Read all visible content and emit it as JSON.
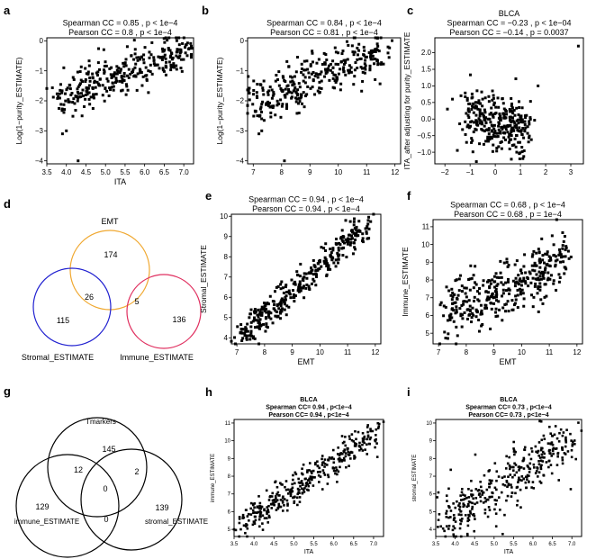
{
  "chart_data": [
    {
      "panel": "a",
      "type": "scatter",
      "stats": [
        "Spearman CC = 0.85 ,  p < 1e−4",
        "Pearson CC = 0.8 ,  p < 1e−4"
      ],
      "xlabel": "ITA",
      "ylabel": "Log(1−purity_ESTIMATE)",
      "xlim": [
        3.5,
        7.25
      ],
      "ylim": [
        -4.1,
        0.1
      ],
      "xticks": [
        "3.5",
        "4.0",
        "4.5",
        "5.0",
        "5.5",
        "6.0",
        "6.5",
        "7.0"
      ],
      "yticks": [
        "0",
        "−1",
        "−2",
        "−3",
        "−4"
      ],
      "trend": {
        "x0": 3.6,
        "y0": -1.95,
        "x1": 7.1,
        "y1": -0.25,
        "spread": 0.35,
        "n": 320,
        "seed": 11
      },
      "points": [
        [
          4.3,
          -4.0
        ],
        [
          4.0,
          -3.0
        ],
        [
          3.9,
          -3.1
        ]
      ]
    },
    {
      "panel": "b",
      "type": "scatter",
      "stats": [
        "Spearman CC = 0.84 ,  p < 1e−4",
        "Pearson CC = 0.81 ,  p < 1e−4"
      ],
      "xlabel": "",
      "ylabel": "Log(1−purity_ESTIMATE)",
      "xlim": [
        6.8,
        12.2
      ],
      "ylim": [
        -4.1,
        0.1
      ],
      "xticks": [
        "7",
        "8",
        "9",
        "10",
        "11",
        "12"
      ],
      "yticks": [
        "0",
        "−1",
        "−2",
        "−3",
        "−4"
      ],
      "trend": {
        "x0": 7.0,
        "y0": -2.1,
        "x1": 11.6,
        "y1": -0.3,
        "spread": 0.38,
        "n": 320,
        "seed": 22
      },
      "points": [
        [
          8.1,
          -4.0
        ],
        [
          7.3,
          -3.0
        ],
        [
          7.2,
          -3.1
        ]
      ]
    },
    {
      "panel": "c",
      "type": "scatter",
      "title": "BLCA",
      "stats": [
        "Spearman CC = −0.23 ,  p < 1e−04",
        "Pearson CC = −0.14 ,  p = 0.0037"
      ],
      "xlabel": "",
      "ylabel": "ITA_after adjusting for purity_ESTIMATE",
      "xlim": [
        -2.4,
        3.5
      ],
      "ylim": [
        -1.35,
        2.45
      ],
      "xticks": [
        "−2",
        "−1",
        "0",
        "1",
        "2",
        "3"
      ],
      "yticks": [
        "−1.0",
        "−0.5",
        "0.0",
        "0.5",
        "1.0",
        "1.5",
        "2.0"
      ],
      "trend": {
        "x0": -1.2,
        "y0": 0.1,
        "x1": 1.3,
        "y1": -0.3,
        "spread": 0.42,
        "n": 300,
        "seed": 33
      },
      "points": [
        [
          3.3,
          2.2
        ],
        [
          1.7,
          1.0
        ],
        [
          -1.7,
          0.6
        ],
        [
          -1.9,
          0.3
        ]
      ]
    },
    {
      "panel": "d",
      "type": "venn",
      "sets": [
        "EMT",
        "Stromal_ESTIMATE",
        "Immune_ESTIMATE"
      ],
      "regions": {
        "emt_only": "174",
        "stromal_only": "115",
        "immune_only": "136",
        "emt_stromal": "26",
        "emt_immune": "5"
      },
      "colors": {
        "emt": "#f0a830",
        "stromal": "#2020d0",
        "immune": "#e03060"
      }
    },
    {
      "panel": "e",
      "type": "scatter",
      "stats": [
        "Spearman CC = 0.94 ,  p < 1e−4",
        "Pearson CC = 0.94 ,  p < 1e−4"
      ],
      "xlabel": "EMT",
      "ylabel": "Stromal_ESTIMATE",
      "xlim": [
        6.8,
        12.2
      ],
      "ylim": [
        3.7,
        10.1
      ],
      "xticks": [
        "7",
        "8",
        "9",
        "10",
        "11",
        "12"
      ],
      "yticks": [
        "4",
        "5",
        "6",
        "7",
        "8",
        "9",
        "10"
      ],
      "trend": {
        "x0": 7.1,
        "y0": 4.0,
        "x1": 11.8,
        "y1": 9.8,
        "spread": 0.35,
        "n": 360,
        "seed": 44
      },
      "points": []
    },
    {
      "panel": "f",
      "type": "scatter",
      "stats": [
        "Spearman CC = 0.68 ,  p < 1e−4",
        "Pearson CC = 0.68 ,  p = 1e−4"
      ],
      "xlabel": "EMT",
      "ylabel": "Immune_ESTIMATE",
      "xlim": [
        6.8,
        12.2
      ],
      "ylim": [
        4.4,
        11.4
      ],
      "xticks": [
        "7",
        "8",
        "9",
        "10",
        "11",
        "12"
      ],
      "yticks": [
        "5",
        "6",
        "7",
        "8",
        "9",
        "10",
        "11"
      ],
      "trend": {
        "x0": 7.2,
        "y0": 6.0,
        "x1": 11.6,
        "y1": 9.3,
        "spread": 0.85,
        "n": 360,
        "seed": 55
      },
      "points": []
    },
    {
      "panel": "g",
      "type": "venn",
      "sets": [
        "Tmarkers",
        "immune_ESTIMATE",
        "stromal_ESTIMATE"
      ],
      "regions": {
        "t_only": "145",
        "t_immune": "12",
        "t_stromal": "2",
        "center": "0",
        "immune_only": "129",
        "stromal_only": "139",
        "immune_stromal": "0"
      }
    },
    {
      "panel": "h",
      "type": "scatter",
      "title": "BLCA",
      "stats": [
        "Spearman CC= 0.94 ,  p<1e−4",
        "Pearson CC= 0.94 ,  p<1e−4"
      ],
      "xlabel": "ITA",
      "ylabel": "immune_ESTIMATE",
      "xlim": [
        3.5,
        7.25
      ],
      "ylim": [
        4.6,
        11.2
      ],
      "xticks": [
        "3.5",
        "4.0",
        "4.5",
        "5.0",
        "5.5",
        "6.0",
        "6.5",
        "7.0"
      ],
      "yticks": [
        "5",
        "6",
        "7",
        "8",
        "9",
        "10",
        "11"
      ],
      "trend": {
        "x0": 3.7,
        "y0": 5.2,
        "x1": 7.1,
        "y1": 10.6,
        "spread": 0.38,
        "n": 360,
        "seed": 66
      },
      "points": []
    },
    {
      "panel": "i",
      "type": "scatter",
      "title": "BLCA",
      "stats": [
        "Spearman CC= 0.73 ,  p<1e−4",
        "Pearson CC= 0.73 ,  p<1e−4"
      ],
      "xlabel": "ITA",
      "ylabel": "stromal_ESTIMATE",
      "xlim": [
        3.5,
        7.25
      ],
      "ylim": [
        3.6,
        10.2
      ],
      "xticks": [
        "3.5",
        "4.0",
        "4.5",
        "5.0",
        "5.5",
        "6.0",
        "6.5",
        "7.0"
      ],
      "yticks": [
        "4",
        "5",
        "6",
        "7",
        "8",
        "9",
        "10"
      ],
      "trend": {
        "x0": 3.7,
        "y0": 4.3,
        "x1": 7.0,
        "y1": 9.2,
        "spread": 0.8,
        "n": 360,
        "seed": 77
      },
      "points": []
    }
  ]
}
